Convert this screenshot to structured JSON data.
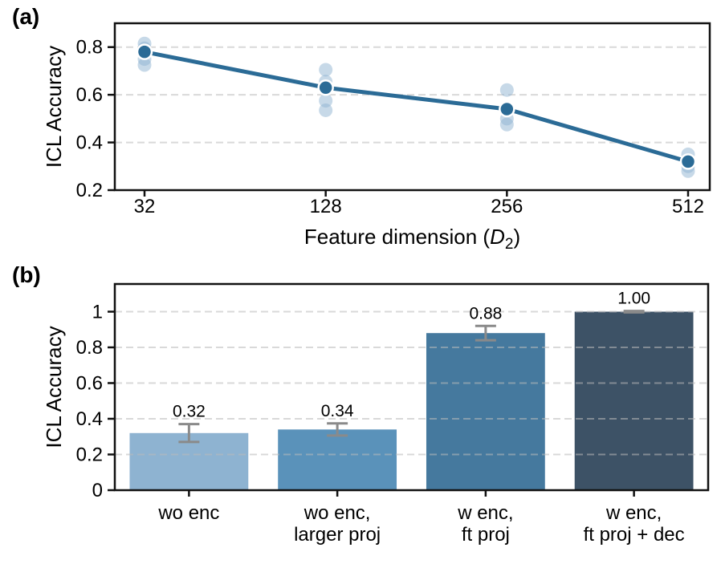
{
  "figure": {
    "panel_a_label": "(a)",
    "panel_b_label": "(b)"
  },
  "colors": {
    "line": "#2b6b96",
    "marker_fill": "#2b6b96",
    "marker_edge": "#ffffff",
    "seed_point": "#8fb4d2",
    "bars": [
      "#8eb3d1",
      "#5a92ba",
      "#45799e",
      "#3d5266"
    ],
    "error_bar": "#8a8a8a",
    "grid": "#bbbbbb",
    "axis": "#111111",
    "text": "#000000",
    "background": "#ffffff"
  },
  "chart_data": [
    {
      "id": "panel_a",
      "type": "line",
      "panel": "(a)",
      "title": "",
      "ylabel": "ICL Accuracy",
      "xlabel_parts": {
        "prefix": "Feature dimension (",
        "variable": "D",
        "subscript": "2",
        "suffix": ")"
      },
      "categories": [
        "32",
        "128",
        "256",
        "512"
      ],
      "values": [
        0.78,
        0.63,
        0.54,
        0.32
      ],
      "seed_points": [
        [
          0.815,
          0.795,
          0.75,
          0.725
        ],
        [
          0.705,
          0.655,
          0.575,
          0.535
        ],
        [
          0.62,
          0.5,
          0.475
        ],
        [
          0.35,
          0.3,
          0.28
        ]
      ],
      "yticks": [
        0.2,
        0.4,
        0.6,
        0.8
      ],
      "ytick_labels": [
        "0.2",
        "0.4",
        "0.6",
        "0.8"
      ],
      "ylim": [
        0.2,
        0.9
      ],
      "grid": "horizontal-dashed",
      "legend": "none"
    },
    {
      "id": "panel_b",
      "type": "bar",
      "panel": "(b)",
      "title": "",
      "ylabel": "ICL Accuracy",
      "xlabel": "",
      "categories": [
        [
          "wo enc"
        ],
        [
          "wo enc,",
          "larger proj"
        ],
        [
          "w enc,",
          "ft proj"
        ],
        [
          "w enc,",
          "ft proj + dec"
        ]
      ],
      "values": [
        0.32,
        0.34,
        0.88,
        1.0
      ],
      "value_labels": [
        "0.32",
        "0.34",
        "0.88",
        "1.00"
      ],
      "errors": [
        0.05,
        0.034,
        0.04,
        0.004
      ],
      "yticks": [
        0,
        0.2,
        0.4,
        0.6,
        0.8,
        1
      ],
      "ytick_labels": [
        "0",
        "0.2",
        "0.4",
        "0.6",
        "0.8",
        "1"
      ],
      "ylim": [
        0,
        1.155
      ],
      "grid": "horizontal-dashed",
      "legend": "none"
    }
  ]
}
